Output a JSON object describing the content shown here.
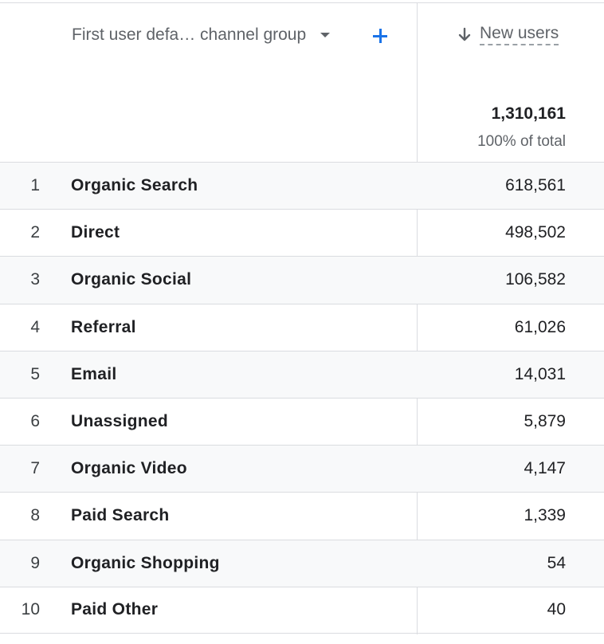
{
  "header": {
    "dimension_label": "First user defa… channel group",
    "metric_label": "New users",
    "sort_direction": "descending",
    "add_icon": "plus-icon",
    "dropdown_icon": "caret-down-icon",
    "sort_icon": "arrow-down-icon",
    "accent_color": "#1a73e8"
  },
  "totals": {
    "value": "1,310,161",
    "percent_label": "100% of total"
  },
  "rows": [
    {
      "rank": "1",
      "channel": "Organic Search",
      "new_users": "618,561"
    },
    {
      "rank": "2",
      "channel": "Direct",
      "new_users": "498,502"
    },
    {
      "rank": "3",
      "channel": "Organic Social",
      "new_users": "106,582"
    },
    {
      "rank": "4",
      "channel": "Referral",
      "new_users": "61,026"
    },
    {
      "rank": "5",
      "channel": "Email",
      "new_users": "14,031"
    },
    {
      "rank": "6",
      "channel": "Unassigned",
      "new_users": "5,879"
    },
    {
      "rank": "7",
      "channel": "Organic Video",
      "new_users": "4,147"
    },
    {
      "rank": "8",
      "channel": "Paid Search",
      "new_users": "1,339"
    },
    {
      "rank": "9",
      "channel": "Organic Shopping",
      "new_users": "54"
    },
    {
      "rank": "10",
      "channel": "Paid Other",
      "new_users": "40"
    }
  ]
}
